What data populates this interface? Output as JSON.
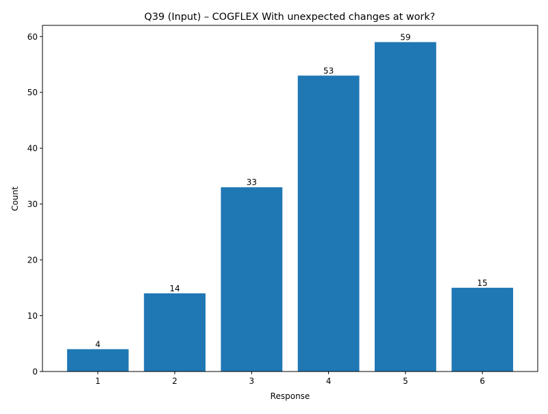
{
  "chart_data": {
    "type": "bar",
    "title": "Q39 (Input) – COGFLEX With unexpected changes at work?",
    "xlabel": "Response",
    "ylabel": "Count",
    "categories": [
      "1",
      "2",
      "3",
      "4",
      "5",
      "6"
    ],
    "values": [
      4,
      14,
      33,
      53,
      59,
      15
    ],
    "data_labels": [
      "4",
      "14",
      "33",
      "53",
      "59",
      "15"
    ],
    "ylim": [
      0,
      62
    ],
    "yticks": [
      0,
      10,
      20,
      30,
      40,
      50,
      60
    ],
    "grid": false,
    "legend": "none",
    "bar_color": "#1f77b4"
  }
}
